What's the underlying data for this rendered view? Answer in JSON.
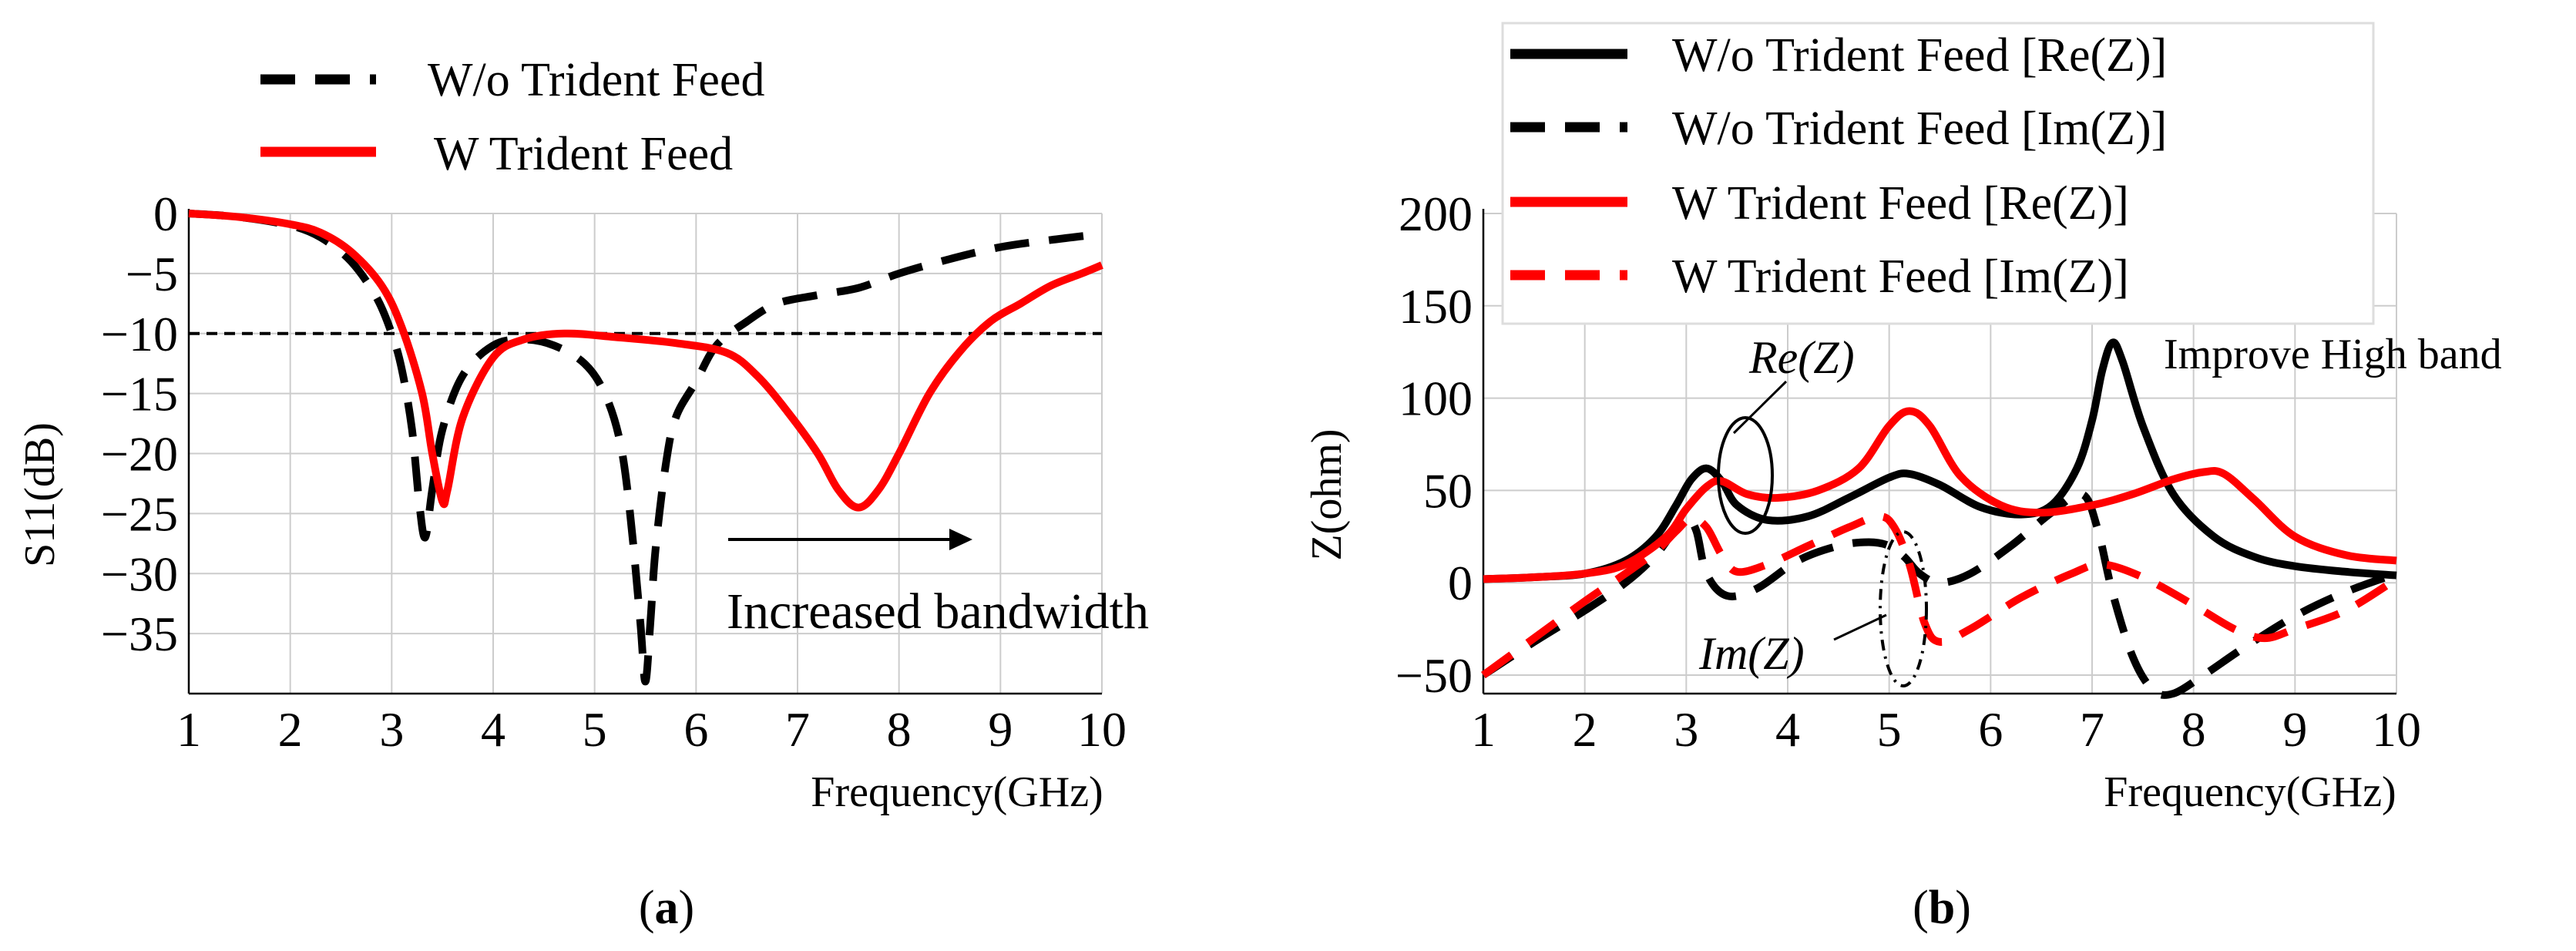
{
  "chart_data": [
    {
      "type": "line",
      "panel_label": "(a)",
      "panel_letter": "a",
      "xlabel": "Frequency(GHz)",
      "ylabel": "S11(dB)",
      "xlim": [
        1,
        10
      ],
      "ylim": [
        -40,
        0
      ],
      "xticks": [
        1,
        2,
        3,
        4,
        5,
        6,
        7,
        8,
        9,
        10
      ],
      "yticks": [
        0,
        -5,
        -10,
        -15,
        -20,
        -25,
        -30,
        -35
      ],
      "ytick_labels": [
        "0",
        "−5",
        "−10",
        "−15",
        "−20",
        "−25",
        "−30",
        "−35"
      ],
      "grid": true,
      "legend_position": "top",
      "reference_line": {
        "y": -10,
        "style": "dashed",
        "color": "#000000"
      },
      "series": [
        {
          "name": "W/o Trident Feed",
          "color": "#000000",
          "dash": "dashed",
          "x": [
            1,
            1.5,
            2,
            2.3,
            2.6,
            2.85,
            3.0,
            3.1,
            3.2,
            3.27,
            3.33,
            3.4,
            3.5,
            3.7,
            4.0,
            4.3,
            4.6,
            4.9,
            5.1,
            5.25,
            5.35,
            5.45,
            5.5,
            5.55,
            5.6,
            5.7,
            5.8,
            6.0,
            6.2,
            6.5,
            6.8,
            7.2,
            7.6,
            8.0,
            8.5,
            9.0,
            9.5,
            10
          ],
          "y": [
            0,
            -0.3,
            -1.0,
            -2.0,
            -4.0,
            -7.0,
            -10.0,
            -13.0,
            -18.0,
            -24.0,
            -27.0,
            -23.0,
            -18.0,
            -13.5,
            -11.0,
            -10.5,
            -11.0,
            -12.5,
            -15.0,
            -19.0,
            -25.0,
            -34.0,
            -39.0,
            -34.0,
            -28.0,
            -21.0,
            -17.0,
            -14.0,
            -11.0,
            -9.0,
            -7.5,
            -6.8,
            -6.2,
            -5.0,
            -3.8,
            -2.8,
            -2.2,
            -1.7
          ]
        },
        {
          "name": "W Trident Feed",
          "color": "#ff0000",
          "dash": "solid",
          "x": [
            1,
            1.5,
            2,
            2.3,
            2.6,
            2.9,
            3.1,
            3.3,
            3.4,
            3.5,
            3.55,
            3.7,
            4.0,
            4.3,
            4.7,
            5.2,
            5.8,
            6.3,
            6.6,
            6.9,
            7.2,
            7.4,
            7.6,
            7.8,
            8.0,
            8.3,
            8.6,
            8.9,
            9.2,
            9.5,
            9.8,
            10
          ],
          "y": [
            0,
            -0.3,
            -0.9,
            -1.6,
            -3.2,
            -6.0,
            -9.5,
            -15.0,
            -20.0,
            -24.0,
            -23.0,
            -17.0,
            -12.0,
            -10.5,
            -10.0,
            -10.3,
            -10.8,
            -11.6,
            -13.5,
            -16.5,
            -20.0,
            -23.0,
            -24.5,
            -23.0,
            -20.0,
            -15.0,
            -11.5,
            -9.0,
            -7.5,
            -6.0,
            -5.0,
            -4.3
          ]
        }
      ],
      "annotations": [
        {
          "text": "Increased bandwidth",
          "arrow": "right"
        }
      ]
    },
    {
      "type": "line",
      "panel_label": "(b)",
      "panel_letter": "b",
      "xlabel": "Frequency(GHz)",
      "ylabel": "Z(ohm)",
      "xlim": [
        1,
        10
      ],
      "ylim": [
        -60,
        200
      ],
      "xticks": [
        1,
        2,
        3,
        4,
        5,
        6,
        7,
        8,
        9,
        10
      ],
      "yticks": [
        200,
        150,
        100,
        50,
        0,
        -50
      ],
      "ytick_labels": [
        "200",
        "150",
        "100",
        "50",
        "0",
        "−50"
      ],
      "grid": true,
      "legend_position": "top",
      "series": [
        {
          "name": "W/o Trident Feed [Re(Z)]",
          "color": "#000000",
          "dash": "solid",
          "x": [
            1,
            1.5,
            2,
            2.4,
            2.7,
            2.9,
            3.05,
            3.2,
            3.35,
            3.5,
            3.8,
            4.2,
            4.6,
            5.0,
            5.2,
            5.5,
            5.9,
            6.3,
            6.6,
            6.85,
            7.0,
            7.1,
            7.2,
            7.3,
            7.5,
            7.8,
            8.2,
            8.6,
            9.0,
            9.5,
            10
          ],
          "y": [
            2,
            3,
            5,
            12,
            25,
            42,
            56,
            62,
            55,
            42,
            34,
            36,
            46,
            57,
            59,
            53,
            41,
            37,
            42,
            62,
            88,
            115,
            130,
            120,
            85,
            48,
            25,
            14,
            9,
            6,
            4
          ]
        },
        {
          "name": "W/o Trident Feed [Im(Z)]",
          "color": "#000000",
          "dash": "dashed",
          "x": [
            1,
            1.5,
            2,
            2.4,
            2.7,
            2.9,
            3.0,
            3.1,
            3.2,
            3.4,
            3.7,
            4.1,
            4.5,
            4.8,
            5.0,
            5.15,
            5.3,
            5.5,
            5.8,
            6.2,
            6.6,
            6.9,
            7.05,
            7.2,
            7.4,
            7.6,
            7.8,
            8.1,
            8.5,
            9.0,
            9.5,
            10
          ],
          "y": [
            -50,
            -32,
            -15,
            0,
            15,
            30,
            36,
            28,
            5,
            -7,
            -3,
            12,
            20,
            22,
            20,
            14,
            5,
            0,
            5,
            20,
            38,
            48,
            30,
            -5,
            -40,
            -58,
            -60,
            -50,
            -35,
            -18,
            -5,
            5
          ]
        },
        {
          "name": "W Trident Feed [Re(Z)]",
          "color": "#ff0000",
          "dash": "solid",
          "x": [
            1,
            1.5,
            2,
            2.4,
            2.8,
            3.0,
            3.2,
            3.35,
            3.6,
            3.9,
            4.3,
            4.7,
            5.0,
            5.2,
            5.4,
            5.7,
            6.1,
            6.5,
            7.0,
            7.4,
            7.8,
            8.1,
            8.3,
            8.6,
            9.0,
            9.5,
            10
          ],
          "y": [
            2,
            3,
            5,
            10,
            25,
            40,
            52,
            55,
            48,
            46,
            50,
            62,
            85,
            93,
            85,
            58,
            42,
            38,
            42,
            48,
            56,
            60,
            59,
            45,
            25,
            15,
            12
          ]
        },
        {
          "name": "W Trident Feed [Im(Z)]",
          "color": "#ff0000",
          "dash": "dashed",
          "x": [
            1,
            1.5,
            2,
            2.4,
            2.7,
            2.9,
            3.05,
            3.2,
            3.35,
            3.5,
            3.8,
            4.2,
            4.6,
            4.9,
            5.05,
            5.2,
            5.35,
            5.5,
            5.8,
            6.3,
            6.8,
            7.1,
            7.5,
            8.0,
            8.4,
            8.7,
            9.0,
            9.5,
            10
          ],
          "y": [
            -50,
            -30,
            -10,
            5,
            17,
            28,
            35,
            30,
            15,
            6,
            10,
            20,
            30,
            36,
            30,
            10,
            -22,
            -32,
            -25,
            -8,
            5,
            10,
            3,
            -12,
            -25,
            -30,
            -25,
            -15,
            2
          ]
        }
      ],
      "annotations": [
        {
          "text": "Re(Z)",
          "italic": true
        },
        {
          "text": "Im(Z)",
          "italic": true
        },
        {
          "text": "Improve High band"
        }
      ]
    }
  ]
}
